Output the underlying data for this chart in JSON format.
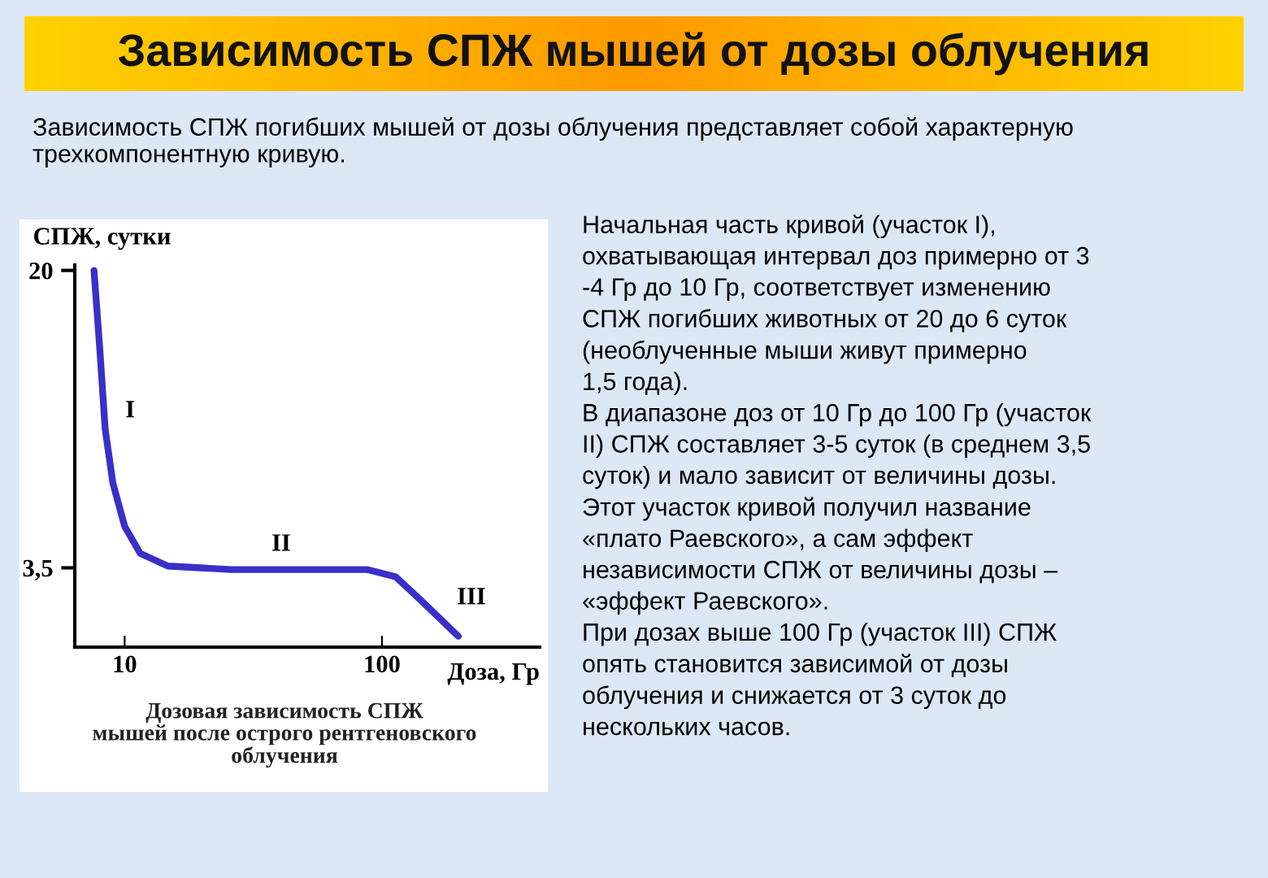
{
  "chart_data": {
    "type": "line",
    "title": "Зависимость СПЖ мышей от дозы облучения",
    "subtitle": "Зависимость СПЖ погибших мышей от дозы облучения представляет собой характерную трехкомпонентную кривую.",
    "xlabel": "Доза, Гр",
    "ylabel": "СПЖ, сутки",
    "log": "x",
    "x": [
      7.6,
      8.0,
      8.4,
      9.0,
      10,
      11.5,
      14.7,
      26,
      88,
      113,
      144,
      198
    ],
    "series": [
      {
        "color": "#3a2fc8",
        "values": [
          20,
          15.7,
          11.2,
          8.2,
          5.8,
          4.3,
          3.6,
          3.4,
          3.4,
          3.0,
          1.6,
          -0.3
        ]
      }
    ],
    "xlim": [
      6.4,
      410
    ],
    "xticks": [
      10,
      100
    ],
    "ylim": [
      -0.9,
      20.3
    ],
    "yticks": [
      20,
      {
        "value": 3.5,
        "label": "3,5"
      }
    ],
    "grid": false,
    "legend": false,
    "marker": "none",
    "line_style": "solid",
    "annotations": [
      "I",
      "II",
      "III",
      "Дозовая зависимость СПЖ\nмышей после острого рентгеновского\nоблучения",
      "Начальная часть кривой (участок I),\nохватывающая интервал доз примерно от 3\n-4 Гр до 10 Гр, соответствует изменению\nСПЖ погибших животных от 20 до 6 суток\n(необлученные мыши живут примерно\n1,5 года).\nВ диапазоне доз от 10 Гр до 100 Гр (участок\nII) СПЖ составляет 3-5 суток (в среднем 3,5\nсуток) и мало зависит от величины дозы.\nЭтот участок кривой получил название\n«плато Раевского», а сам эффект\nнезависимости СПЖ от величины дозы –\n«эффект Раевского».\nПри дозах выше 100 Гр (участок III) СПЖ\nопять становится зависимой от дозы\nоблучения и снижается от 3 суток до\nнескольких часов."
    ]
  }
}
